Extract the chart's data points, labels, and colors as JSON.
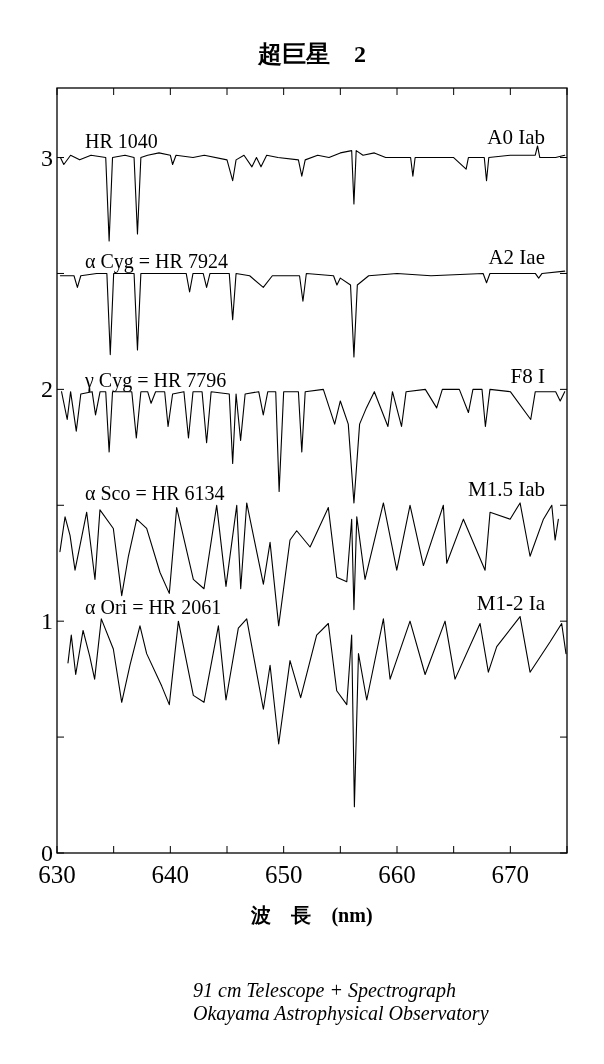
{
  "chart_data": {
    "type": "line",
    "title": "超巨星　2",
    "xlabel": "波　長　(nm)",
    "xlim": [
      630,
      675
    ],
    "ylim": [
      0,
      3.3
    ],
    "xticks": [
      630,
      {
        "value": 635,
        "label": null
      },
      640,
      {
        "value": 645,
        "label": null
      },
      650,
      {
        "value": 655,
        "label": null
      },
      660,
      {
        "value": 665,
        "label": null
      },
      670,
      {
        "value": 675,
        "label": null
      }
    ],
    "yticks": [
      0,
      {
        "value": 0.5,
        "label": null
      },
      1,
      {
        "value": 1.5,
        "label": null
      },
      2,
      {
        "value": 2.5,
        "label": null
      },
      3
    ],
    "grid": false,
    "legend": false,
    "marker": "none",
    "line_style": "solid",
    "series": [
      {
        "name": "HR 1040",
        "color": "#000000",
        "x": [
          630.3,
          630.6,
          631.2,
          632,
          633,
          634.3,
          634.6,
          634.9,
          636,
          636.8,
          637.1,
          637.4,
          638,
          639,
          640,
          640.2,
          640.5,
          642,
          643,
          645,
          645.5,
          645.8,
          646.5,
          647.2,
          647.6,
          648,
          648.5,
          649.5,
          651.3,
          651.6,
          651.9,
          653,
          654,
          655,
          656,
          656.2,
          656.4,
          657,
          658,
          659,
          661.2,
          661.4,
          661.6,
          663,
          665,
          666.1,
          666.3,
          667.7,
          667.9,
          668.1,
          670,
          672.2,
          672.4,
          672.6,
          674,
          674.8
        ],
        "values": [
          3.0,
          2.97,
          3.01,
          2.99,
          3.01,
          3.0,
          2.64,
          3.0,
          3.01,
          3.0,
          2.67,
          3.0,
          3.01,
          3.02,
          3.01,
          2.97,
          3.01,
          3.0,
          3.01,
          2.99,
          2.9,
          2.99,
          3.01,
          2.96,
          3.0,
          2.96,
          3.01,
          3.0,
          2.99,
          2.92,
          2.99,
          3.01,
          3.0,
          3.02,
          3.03,
          2.8,
          3.03,
          3.01,
          3.02,
          3.0,
          3.0,
          2.92,
          3.0,
          3.0,
          3.0,
          2.95,
          3.0,
          3.0,
          2.9,
          3.0,
          3.01,
          3.01,
          3.05,
          3.0,
          3.0,
          3.01
        ]
      },
      {
        "name": "α Cyg = HR 7924",
        "color": "#000000",
        "x": [
          630.3,
          631.5,
          631.8,
          632.1,
          633.5,
          634.4,
          634.7,
          635.0,
          636.8,
          637.1,
          637.4,
          639,
          641.4,
          641.7,
          642,
          642.9,
          643.2,
          643.5,
          645.2,
          645.5,
          645.8,
          647,
          648.2,
          649,
          651.4,
          651.7,
          652,
          654.4,
          654.7,
          655,
          655.9,
          656.2,
          656.5,
          657.5,
          660,
          663,
          667.6,
          667.9,
          668.2,
          672.2,
          672.5,
          672.8,
          674.8
        ],
        "values": [
          2.49,
          2.49,
          2.44,
          2.49,
          2.5,
          2.5,
          2.15,
          2.5,
          2.5,
          2.17,
          2.5,
          2.5,
          2.5,
          2.42,
          2.5,
          2.5,
          2.44,
          2.5,
          2.5,
          2.3,
          2.5,
          2.49,
          2.44,
          2.49,
          2.49,
          2.38,
          2.5,
          2.49,
          2.45,
          2.48,
          2.45,
          2.14,
          2.45,
          2.49,
          2.5,
          2.49,
          2.5,
          2.46,
          2.5,
          2.5,
          2.48,
          2.5,
          2.51
        ]
      },
      {
        "name": "γ Cyg = HR 7796",
        "color": "#000000",
        "x": [
          630.4,
          630.9,
          631.2,
          631.7,
          632.1,
          633.1,
          633.4,
          633.8,
          634.3,
          634.6,
          634.9,
          636.6,
          637.0,
          637.4,
          638.0,
          638.3,
          638.7,
          639.5,
          639.8,
          640.2,
          641.2,
          641.6,
          642.0,
          642.8,
          643.2,
          643.6,
          645.2,
          645.5,
          645.8,
          646.2,
          646.6,
          647.8,
          648.2,
          648.6,
          649.3,
          649.6,
          650.0,
          651.3,
          651.6,
          651.9,
          653.5,
          654.5,
          655.0,
          655.7,
          656.2,
          656.7,
          657.3,
          658,
          659.2,
          659.6,
          660.4,
          660.8,
          662.5,
          663.5,
          664,
          665.5,
          666.3,
          666.7,
          667.5,
          667.8,
          668.2,
          670,
          671.8,
          672.2,
          674,
          674.4,
          674.8
        ],
        "values": [
          1.99,
          1.87,
          1.99,
          1.82,
          1.98,
          1.99,
          1.89,
          1.99,
          1.99,
          1.73,
          1.99,
          1.99,
          1.79,
          1.99,
          1.99,
          1.94,
          1.99,
          1.99,
          1.84,
          1.98,
          1.99,
          1.79,
          1.99,
          1.99,
          1.77,
          1.99,
          1.98,
          1.68,
          1.98,
          1.78,
          1.98,
          1.99,
          1.89,
          1.99,
          1.99,
          1.56,
          1.99,
          1.99,
          1.73,
          1.99,
          2.0,
          1.85,
          1.95,
          1.85,
          1.51,
          1.85,
          1.92,
          1.99,
          1.84,
          1.99,
          1.84,
          1.99,
          2.0,
          1.92,
          2.0,
          2.0,
          1.9,
          2.0,
          2.0,
          1.84,
          2.0,
          1.99,
          1.87,
          1.99,
          1.99,
          1.95,
          1.99
        ]
      },
      {
        "name": "α Sco = HR 6134",
        "color": "#000000",
        "x": [
          630.26,
          630.71,
          631.15,
          631.59,
          632.62,
          633.35,
          633.79,
          634.97,
          635.71,
          636.3,
          637.03,
          637.91,
          639.09,
          639.91,
          640.56,
          642.03,
          642.97,
          644.09,
          644.91,
          645.86,
          646.21,
          646.74,
          648.21,
          648.8,
          649.56,
          650.56,
          651.15,
          652.33,
          653.94,
          654.68,
          655.57,
          656.0,
          656.2,
          656.45,
          657.18,
          658.8,
          659.98,
          661.15,
          662.33,
          664.09,
          664.39,
          665.86,
          667.77,
          668.21,
          669.98,
          670.86,
          671.74,
          672.92,
          673.66,
          673.95,
          674.24
        ],
        "values": [
          1.3,
          1.45,
          1.37,
          1.22,
          1.47,
          1.18,
          1.48,
          1.4,
          1.11,
          1.28,
          1.44,
          1.4,
          1.21,
          1.12,
          1.49,
          1.18,
          1.14,
          1.5,
          1.15,
          1.5,
          1.14,
          1.51,
          1.16,
          1.34,
          0.98,
          1.35,
          1.39,
          1.32,
          1.49,
          1.19,
          1.17,
          1.44,
          1.05,
          1.45,
          1.18,
          1.51,
          1.22,
          1.5,
          1.24,
          1.5,
          1.25,
          1.44,
          1.22,
          1.47,
          1.44,
          1.51,
          1.28,
          1.44,
          1.5,
          1.35,
          1.44
        ]
      },
      {
        "name": "α Ori = HR 2061",
        "color": "#000000",
        "x": [
          630.97,
          631.26,
          631.65,
          632.3,
          632.88,
          633.32,
          633.91,
          634.97,
          635.71,
          636.44,
          637.32,
          637.91,
          639.24,
          639.91,
          640.71,
          642.03,
          642.97,
          644.24,
          644.91,
          646.0,
          646.74,
          648.21,
          648.8,
          649.56,
          650.56,
          651.5,
          652.91,
          653.94,
          654.68,
          655.57,
          656.0,
          656.24,
          656.6,
          657.33,
          658.8,
          659.39,
          661.15,
          662.48,
          664.24,
          665.12,
          667.33,
          668.06,
          668.8,
          670.86,
          671.74,
          673.5,
          674.53,
          674.91
        ],
        "values": [
          0.82,
          0.94,
          0.77,
          0.96,
          0.85,
          0.75,
          1.01,
          0.88,
          0.65,
          0.81,
          0.98,
          0.86,
          0.72,
          0.64,
          1.0,
          0.68,
          0.65,
          0.98,
          0.66,
          0.97,
          1.01,
          0.62,
          0.81,
          0.47,
          0.83,
          0.67,
          0.94,
          0.99,
          0.7,
          0.64,
          0.94,
          0.2,
          0.86,
          0.66,
          1.01,
          0.75,
          1.0,
          0.77,
          1.0,
          0.75,
          0.99,
          0.78,
          0.89,
          1.02,
          0.78,
          0.91,
          0.99,
          0.86
        ]
      }
    ],
    "annotations": [
      "A0 Iab",
      "A2 Iae",
      "F8 I",
      "M1.5 Iab",
      "M1-2 Ia",
      "91 cm Telescope + Spectrograph",
      "Okayama Astrophysical Observatory"
    ]
  }
}
